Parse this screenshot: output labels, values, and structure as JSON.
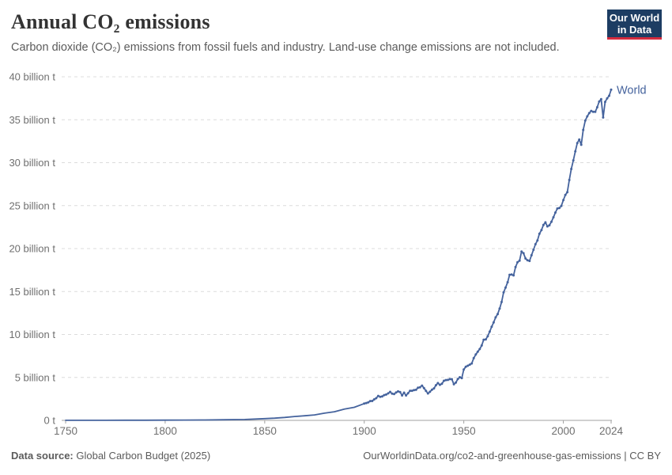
{
  "header": {
    "title": "Annual CO₂ emissions",
    "subtitle": "Carbon dioxide (CO₂) emissions from fossil fuels and industry. Land-use change emissions are not included.",
    "logo": {
      "line1": "Our World",
      "line2": "in Data",
      "bg_color": "#1d3d63",
      "accent_color": "#d42b3e"
    }
  },
  "footer": {
    "source_label": "Data source:",
    "source_value": " Global Carbon Budget (2025)",
    "link_text": "OurWorldinData.org/co2-and-greenhouse-gas-emissions | CC BY"
  },
  "colors": {
    "line": "#45639d",
    "grid": "#dcdcdc",
    "axis": "#a1a1a1",
    "tick_label": "#6f6f6f",
    "title": "#333333",
    "subtitle": "#5b5b5b"
  },
  "chart_data": {
    "type": "line",
    "title": "Annual CO₂ emissions",
    "xlabel": "",
    "ylabel": "",
    "unit": "billion t",
    "xlim": [
      1750,
      2024
    ],
    "ylim": [
      0,
      40
    ],
    "grid": "horizontal-dashed",
    "legend_position": "end-of-line",
    "x_ticks": [
      {
        "value": 1750,
        "label": "1750"
      },
      {
        "value": 1800,
        "label": "1800"
      },
      {
        "value": 1850,
        "label": "1850"
      },
      {
        "value": 1900,
        "label": "1900"
      },
      {
        "value": 1950,
        "label": "1950"
      },
      {
        "value": 2000,
        "label": "2000"
      },
      {
        "value": 2024,
        "label": "2024"
      }
    ],
    "y_ticks": [
      {
        "value": 0,
        "label": "0 t"
      },
      {
        "value": 5,
        "label": "5 billion t"
      },
      {
        "value": 10,
        "label": "10 billion t"
      },
      {
        "value": 15,
        "label": "15 billion t"
      },
      {
        "value": 20,
        "label": "20 billion t"
      },
      {
        "value": 25,
        "label": "25 billion t"
      },
      {
        "value": 30,
        "label": "30 billion t"
      },
      {
        "value": 35,
        "label": "35 billion t"
      },
      {
        "value": 40,
        "label": "40 billion t"
      }
    ],
    "series": [
      {
        "name": "World",
        "color": "#45639d",
        "marker_from_year": 1900,
        "points": [
          [
            1750,
            0.01
          ],
          [
            1760,
            0.011
          ],
          [
            1770,
            0.013
          ],
          [
            1780,
            0.016
          ],
          [
            1790,
            0.02
          ],
          [
            1800,
            0.03
          ],
          [
            1810,
            0.04
          ],
          [
            1820,
            0.05
          ],
          [
            1830,
            0.07
          ],
          [
            1840,
            0.1
          ],
          [
            1850,
            0.2
          ],
          [
            1855,
            0.26
          ],
          [
            1860,
            0.34
          ],
          [
            1865,
            0.45
          ],
          [
            1870,
            0.53
          ],
          [
            1875,
            0.64
          ],
          [
            1880,
            0.84
          ],
          [
            1885,
            1.0
          ],
          [
            1890,
            1.31
          ],
          [
            1895,
            1.52
          ],
          [
            1900,
            1.95
          ],
          [
            1901,
            2.02
          ],
          [
            1902,
            2.1
          ],
          [
            1903,
            2.25
          ],
          [
            1904,
            2.26
          ],
          [
            1905,
            2.44
          ],
          [
            1906,
            2.58
          ],
          [
            1907,
            2.85
          ],
          [
            1908,
            2.75
          ],
          [
            1909,
            2.79
          ],
          [
            1910,
            2.94
          ],
          [
            1911,
            3.0
          ],
          [
            1912,
            3.14
          ],
          [
            1913,
            3.32
          ],
          [
            1914,
            3.11
          ],
          [
            1915,
            3.06
          ],
          [
            1916,
            3.24
          ],
          [
            1917,
            3.37
          ],
          [
            1918,
            3.3
          ],
          [
            1919,
            2.9
          ],
          [
            1920,
            3.23
          ],
          [
            1921,
            2.9
          ],
          [
            1922,
            3.15
          ],
          [
            1923,
            3.45
          ],
          [
            1924,
            3.45
          ],
          [
            1925,
            3.53
          ],
          [
            1926,
            3.56
          ],
          [
            1927,
            3.8
          ],
          [
            1928,
            3.85
          ],
          [
            1929,
            4.05
          ],
          [
            1930,
            3.76
          ],
          [
            1931,
            3.44
          ],
          [
            1932,
            3.13
          ],
          [
            1933,
            3.33
          ],
          [
            1934,
            3.57
          ],
          [
            1935,
            3.72
          ],
          [
            1936,
            4.09
          ],
          [
            1937,
            4.34
          ],
          [
            1938,
            4.14
          ],
          [
            1939,
            4.26
          ],
          [
            1940,
            4.61
          ],
          [
            1941,
            4.69
          ],
          [
            1942,
            4.71
          ],
          [
            1943,
            4.8
          ],
          [
            1944,
            4.79
          ],
          [
            1945,
            4.2
          ],
          [
            1946,
            4.41
          ],
          [
            1947,
            4.81
          ],
          [
            1948,
            5.02
          ],
          [
            1949,
            4.92
          ],
          [
            1950,
            5.92
          ],
          [
            1951,
            6.25
          ],
          [
            1952,
            6.36
          ],
          [
            1953,
            6.49
          ],
          [
            1954,
            6.63
          ],
          [
            1955,
            7.24
          ],
          [
            1956,
            7.67
          ],
          [
            1957,
            7.99
          ],
          [
            1958,
            8.3
          ],
          [
            1959,
            8.72
          ],
          [
            1960,
            9.39
          ],
          [
            1961,
            9.42
          ],
          [
            1962,
            9.8
          ],
          [
            1963,
            10.33
          ],
          [
            1964,
            10.9
          ],
          [
            1965,
            11.41
          ],
          [
            1966,
            11.99
          ],
          [
            1967,
            12.38
          ],
          [
            1968,
            13.02
          ],
          [
            1969,
            13.79
          ],
          [
            1970,
            14.9
          ],
          [
            1971,
            15.46
          ],
          [
            1972,
            16.08
          ],
          [
            1973,
            16.95
          ],
          [
            1974,
            16.98
          ],
          [
            1975,
            16.88
          ],
          [
            1976,
            17.85
          ],
          [
            1977,
            18.41
          ],
          [
            1978,
            18.6
          ],
          [
            1979,
            19.66
          ],
          [
            1980,
            19.46
          ],
          [
            1981,
            18.85
          ],
          [
            1982,
            18.64
          ],
          [
            1983,
            18.56
          ],
          [
            1984,
            19.23
          ],
          [
            1985,
            19.86
          ],
          [
            1986,
            20.51
          ],
          [
            1987,
            20.95
          ],
          [
            1988,
            21.72
          ],
          [
            1989,
            22.16
          ],
          [
            1990,
            22.76
          ],
          [
            1991,
            23.05
          ],
          [
            1992,
            22.58
          ],
          [
            1993,
            22.71
          ],
          [
            1994,
            23.12
          ],
          [
            1995,
            23.64
          ],
          [
            1996,
            24.19
          ],
          [
            1997,
            24.66
          ],
          [
            1998,
            24.73
          ],
          [
            1999,
            24.97
          ],
          [
            2000,
            25.65
          ],
          [
            2001,
            26.24
          ],
          [
            2002,
            26.57
          ],
          [
            2003,
            27.98
          ],
          [
            2004,
            29.26
          ],
          [
            2005,
            30.27
          ],
          [
            2006,
            31.31
          ],
          [
            2007,
            32.29
          ],
          [
            2008,
            32.7
          ],
          [
            2009,
            32.08
          ],
          [
            2010,
            33.82
          ],
          [
            2011,
            34.9
          ],
          [
            2012,
            35.39
          ],
          [
            2013,
            35.77
          ],
          [
            2014,
            36.03
          ],
          [
            2015,
            35.93
          ],
          [
            2016,
            35.92
          ],
          [
            2017,
            36.45
          ],
          [
            2018,
            37.12
          ],
          [
            2019,
            37.4
          ],
          [
            2020,
            35.26
          ],
          [
            2021,
            37.08
          ],
          [
            2022,
            37.49
          ],
          [
            2023,
            37.79
          ],
          [
            2024,
            38.5
          ]
        ]
      }
    ]
  }
}
